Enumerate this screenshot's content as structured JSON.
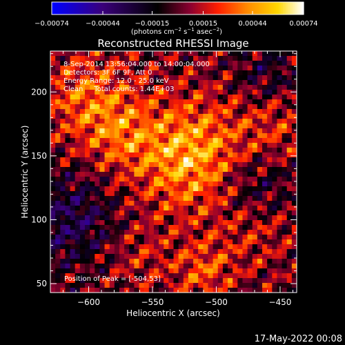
{
  "chart_data": {
    "type": "heatmap",
    "title": "Reconstructed RHESSI Image",
    "xlabel": "Heliocentric X (arcsec)",
    "ylabel": "Heliocentric Y (arcsec)",
    "xlim": [
      -630,
      -437
    ],
    "ylim": [
      43,
      232
    ],
    "x_ticks": [
      -600,
      -550,
      -500,
      -450
    ],
    "y_ticks": [
      50,
      100,
      150,
      200
    ],
    "x_tick_labels": [
      "−600",
      "−550",
      "−500",
      "−450"
    ],
    "y_tick_labels": [
      "50",
      "100",
      "150",
      "200"
    ],
    "colorbar": {
      "min": -0.00074,
      "max": 0.00074,
      "ticks": [
        -0.00074,
        -0.00044,
        -0.00015,
        0.00015,
        0.00044,
        0.00074
      ],
      "tick_labels": [
        "−0.00074",
        "−0.00044",
        "−0.00015",
        "0.00015",
        "0.00044",
        "0.00074"
      ],
      "unit_parts": [
        "(photons cm",
        "−2",
        " s",
        "−1",
        " asec",
        "−2",
        ")"
      ]
    },
    "annotations": [
      "8-Sep-2014 13:56:04.000 to 14:00:04.000",
      "Detectors: 3F 6F 9F, Att 0",
      "Energy Range: 12.0 - 25.0 keV",
      "Clean     Total counts: 1.44E+03"
    ],
    "peak_label": "Position of Peak = [-504,53]",
    "peak_position": [
      -504,
      53
    ],
    "peak_value": 0.00074,
    "grid": false,
    "colormap": [
      "#0000ff",
      "#3a007a",
      "#000000",
      "#8a0030",
      "#ff1e00",
      "#ff8c00",
      "#ffd700",
      "#ffffff"
    ]
  },
  "footer": {
    "date": "17-May-2022 00:08"
  }
}
